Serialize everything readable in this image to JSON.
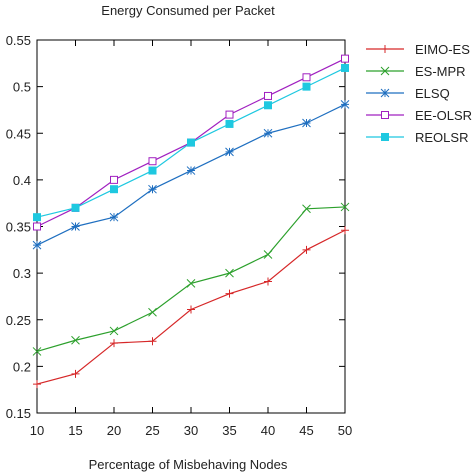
{
  "chart_data": {
    "type": "line",
    "title": "Energy Consumed per Packet",
    "xlabel": "Percentage of Misbehaving Nodes",
    "ylabel": "",
    "x": [
      10,
      15,
      20,
      25,
      30,
      35,
      40,
      45,
      50
    ],
    "xlim": [
      10,
      50
    ],
    "ylim": [
      0.15,
      0.55
    ],
    "xticks": [
      "10",
      "15",
      "20",
      "25",
      "30",
      "35",
      "40",
      "45",
      "50"
    ],
    "yticks": [
      "0.15",
      "0.2",
      "0.25",
      "0.3",
      "0.35",
      "0.4",
      "0.45",
      "0.5",
      "0.55"
    ],
    "grid": false,
    "legend_position": "top-right",
    "series": [
      {
        "name": "EIMO-ES",
        "color": "#d62728",
        "marker": "plus",
        "values": [
          0.181,
          0.192,
          0.225,
          0.227,
          0.261,
          0.278,
          0.291,
          0.325,
          0.346
        ]
      },
      {
        "name": "ES-MPR",
        "color": "#2ca02c",
        "marker": "cross",
        "values": [
          0.216,
          0.228,
          0.238,
          0.258,
          0.289,
          0.3,
          0.32,
          0.369,
          0.371
        ]
      },
      {
        "name": "ELSQ",
        "color": "#1f6fc0",
        "marker": "star",
        "values": [
          0.33,
          0.35,
          0.36,
          0.39,
          0.41,
          0.43,
          0.45,
          0.461,
          0.481
        ]
      },
      {
        "name": "EE-OLSR",
        "color": "#a020c0",
        "marker": "open-square",
        "values": [
          0.35,
          0.37,
          0.4,
          0.42,
          0.44,
          0.47,
          0.49,
          0.51,
          0.53
        ]
      },
      {
        "name": "REOLSR",
        "color": "#1ec8e0",
        "marker": "filled-square",
        "values": [
          0.36,
          0.37,
          0.39,
          0.41,
          0.44,
          0.46,
          0.48,
          0.5,
          0.52
        ]
      }
    ]
  }
}
